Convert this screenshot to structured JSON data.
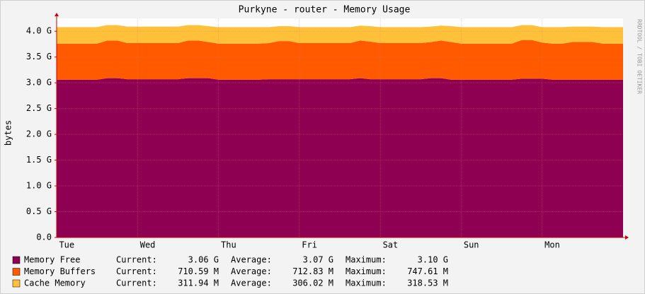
{
  "chart_data": {
    "type": "stacked_area",
    "title": "Purkyne - router  - Memory Usage",
    "y_label": "bytes",
    "side_note": "RRDTOOL / TOBI OETIKER",
    "categories": [
      null,
      "Tue",
      null,
      null,
      null,
      null,
      null,
      null,
      null,
      "Wed",
      null,
      null,
      null,
      null,
      null,
      null,
      null,
      "Thu",
      null,
      null,
      null,
      null,
      null,
      null,
      null,
      "Fri",
      null,
      null,
      null,
      null,
      null,
      null,
      null,
      "Sat",
      null,
      null,
      null,
      null,
      null,
      null,
      null,
      "Sun",
      null,
      null,
      null,
      null,
      null,
      null,
      null,
      "Mon",
      null,
      null,
      null,
      null,
      null,
      null,
      null
    ],
    "ylim": [
      0,
      4.25
    ],
    "yticks": [
      {
        "value": 0,
        "label": "0.0"
      },
      {
        "value": 0.5,
        "label": "0.5 G"
      },
      {
        "value": 1,
        "label": "1.0 G"
      },
      {
        "value": 1.5,
        "label": "1.5 G"
      },
      {
        "value": 2,
        "label": "2.0 G"
      },
      {
        "value": 2.5,
        "label": "2.5 G"
      },
      {
        "value": 3,
        "label": "3.0 G"
      },
      {
        "value": 3.5,
        "label": "3.5 G"
      },
      {
        "value": 4,
        "label": "4.0 G"
      }
    ],
    "grid": true,
    "series": [
      {
        "name": "Memory Free",
        "color": "#8e0052",
        "values": [
          3.06,
          3.06,
          3.06,
          3.06,
          3.06,
          3.09,
          3.09,
          3.07,
          3.07,
          3.07,
          3.07,
          3.07,
          3.07,
          3.09,
          3.09,
          3.09,
          3.06,
          3.06,
          3.06,
          3.06,
          3.06,
          3.07,
          3.07,
          3.07,
          3.07,
          3.07,
          3.07,
          3.07,
          3.07,
          3.07,
          3.09,
          3.07,
          3.07,
          3.07,
          3.07,
          3.07,
          3.07,
          3.09,
          3.09,
          3.06,
          3.06,
          3.06,
          3.06,
          3.06,
          3.06,
          3.06,
          3.08,
          3.08,
          3.08,
          3.06,
          3.06,
          3.06,
          3.06,
          3.06,
          3.06,
          3.06,
          3.06
        ],
        "stats": [
          {
            "label": "Current:",
            "value": "3.06 G"
          },
          {
            "label": "Average:",
            "value": "3.07 G"
          },
          {
            "label": "Maximum:",
            "value": "3.10 G"
          }
        ]
      },
      {
        "name": "Memory Buffers",
        "color": "#ff5a00",
        "values": [
          0.7,
          0.7,
          0.7,
          0.7,
          0.7,
          0.73,
          0.73,
          0.7,
          0.7,
          0.7,
          0.7,
          0.7,
          0.7,
          0.73,
          0.73,
          0.7,
          0.7,
          0.7,
          0.7,
          0.7,
          0.7,
          0.7,
          0.74,
          0.74,
          0.7,
          0.7,
          0.7,
          0.7,
          0.7,
          0.7,
          0.73,
          0.73,
          0.7,
          0.7,
          0.7,
          0.7,
          0.7,
          0.7,
          0.73,
          0.73,
          0.7,
          0.7,
          0.7,
          0.7,
          0.7,
          0.7,
          0.75,
          0.75,
          0.7,
          0.7,
          0.7,
          0.73,
          0.73,
          0.73,
          0.7,
          0.7,
          0.7
        ],
        "stats": [
          {
            "label": "Current:",
            "value": "710.59 M"
          },
          {
            "label": "Average:",
            "value": "712.83 M"
          },
          {
            "label": "Maximum:",
            "value": "747.61 M"
          }
        ]
      },
      {
        "name": "Cache Memory",
        "color": "#ffc03a",
        "values": [
          0.32,
          0.32,
          0.32,
          0.32,
          0.32,
          0.3,
          0.3,
          0.32,
          0.32,
          0.32,
          0.32,
          0.32,
          0.32,
          0.3,
          0.3,
          0.31,
          0.32,
          0.32,
          0.32,
          0.32,
          0.32,
          0.31,
          0.29,
          0.29,
          0.31,
          0.31,
          0.31,
          0.31,
          0.31,
          0.31,
          0.29,
          0.3,
          0.31,
          0.31,
          0.31,
          0.31,
          0.31,
          0.3,
          0.29,
          0.31,
          0.32,
          0.32,
          0.32,
          0.32,
          0.32,
          0.32,
          0.29,
          0.29,
          0.3,
          0.32,
          0.32,
          0.3,
          0.3,
          0.3,
          0.32,
          0.32,
          0.32
        ],
        "stats": [
          {
            "label": "Current:",
            "value": "311.94 M"
          },
          {
            "label": "Average:",
            "value": "306.02 M"
          },
          {
            "label": "Maximum:",
            "value": "318.53 M"
          }
        ]
      }
    ]
  }
}
